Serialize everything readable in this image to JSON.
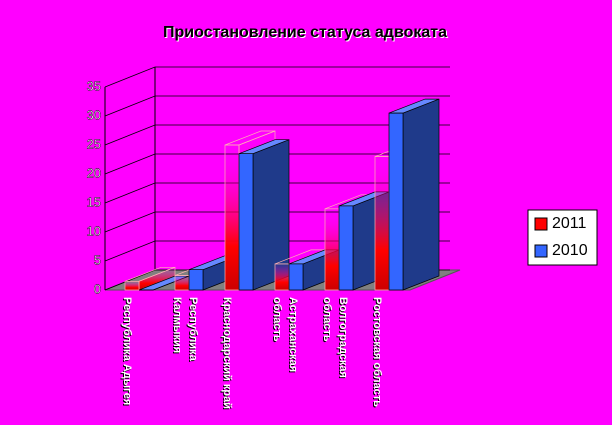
{
  "chart_data": {
    "type": "bar3d",
    "title": "Приостановление статуса адвоката",
    "categories": [
      "Республика Адыгея",
      "Республика Калмыкия",
      "Краснодарский край",
      "Астраханская область",
      "Волгоградская область",
      "Ростовская область"
    ],
    "series": [
      {
        "name": "2011",
        "color": "#ff0000",
        "values": [
          1.5,
          2.5,
          25,
          4.5,
          14,
          23
        ]
      },
      {
        "name": "2010",
        "color": "#3366ff",
        "values": [
          0,
          3.5,
          23.5,
          4.5,
          14.5,
          30.5
        ]
      }
    ],
    "ylim": [
      0,
      35
    ],
    "yticks": [
      0,
      5,
      10,
      15,
      20,
      25,
      30,
      35
    ],
    "grid": true,
    "legend": "right"
  }
}
